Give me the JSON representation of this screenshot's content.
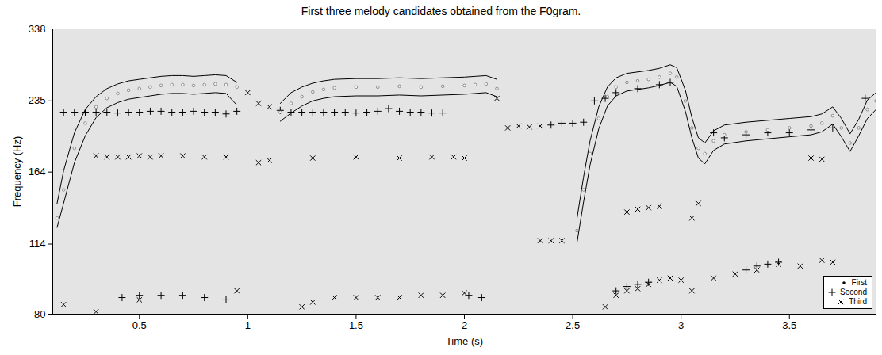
{
  "chart_data": {
    "type": "scatter",
    "title": "First three melody candidates obtained from the F0gram.",
    "x_label": "Time (s)",
    "y_label": "Frequency (Hz)",
    "xlim": [
      0.1,
      3.9
    ],
    "xticks": [
      0.5,
      1,
      1.5,
      2,
      2.5,
      3,
      3.5
    ],
    "ylim": [
      80,
      338
    ],
    "yticks": [
      80,
      114,
      164,
      235,
      338
    ],
    "log": "y",
    "grid": false,
    "legend": "lower right",
    "series": [
      {
        "name": "First",
        "color": "#f2f2f2",
        "marker": "dot",
        "x": [
          0.12,
          0.15,
          0.2,
          0.25,
          0.3,
          0.35,
          0.4,
          0.45,
          0.5,
          0.55,
          0.6,
          0.65,
          0.7,
          0.75,
          0.8,
          0.85,
          0.9,
          0.95,
          1.05,
          1.15,
          1.2,
          1.25,
          1.3,
          1.35,
          1.4,
          1.5,
          1.6,
          1.7,
          1.8,
          1.9,
          2.0,
          2.05,
          2.1,
          2.15,
          2.3,
          2.52,
          2.55,
          2.58,
          2.62,
          2.66,
          2.7,
          2.75,
          2.8,
          2.85,
          2.9,
          2.95,
          2.98,
          3.02,
          3.05,
          3.08,
          3.11,
          3.15,
          3.2,
          3.3,
          3.4,
          3.5,
          3.6,
          3.65,
          3.7,
          3.74,
          3.78,
          3.82,
          3.86,
          3.9
        ],
        "values": [
          130,
          150,
          185,
          210,
          228,
          238,
          244,
          248,
          250,
          252,
          254,
          255,
          255,
          254,
          255,
          256,
          255,
          252,
          null,
          222,
          232,
          240,
          246,
          249,
          251,
          252,
          252,
          253,
          252,
          253,
          254,
          255,
          256,
          250,
          null,
          122,
          150,
          180,
          215,
          240,
          252,
          258,
          260,
          262,
          265,
          270,
          265,
          235,
          205,
          185,
          180,
          192,
          198,
          201,
          203,
          205,
          207,
          210,
          218,
          205,
          190,
          205,
          225,
          235
        ],
        "upper": [
          140,
          165,
          200,
          225,
          240,
          250,
          256,
          260,
          262,
          264,
          266,
          267,
          267,
          266,
          267,
          268,
          267,
          258,
          null,
          232,
          245,
          252,
          257,
          260,
          262,
          263,
          263,
          264,
          263,
          264,
          265,
          266,
          267,
          262,
          null,
          130,
          160,
          192,
          228,
          252,
          264,
          270,
          272,
          274,
          277,
          282,
          278,
          248,
          216,
          195,
          190,
          202,
          208,
          211,
          213,
          215,
          217,
          220,
          228,
          215,
          199,
          214,
          236,
          245
        ],
        "lower": [
          124,
          140,
          172,
          197,
          216,
          227,
          233,
          237,
          239,
          241,
          243,
          244,
          244,
          243,
          244,
          245,
          244,
          230,
          null,
          212,
          221,
          229,
          235,
          238,
          240,
          241,
          241,
          242,
          241,
          242,
          243,
          244,
          245,
          240,
          null,
          115,
          141,
          170,
          204,
          229,
          241,
          247,
          249,
          251,
          254,
          258,
          253,
          223,
          195,
          176,
          171,
          183,
          189,
          192,
          194,
          196,
          198,
          201,
          209,
          196,
          182,
          197,
          215,
          225
        ]
      },
      {
        "name": "Second",
        "color": "#000000",
        "marker": "plus",
        "x": [
          0.15,
          0.2,
          0.25,
          0.3,
          0.35,
          0.4,
          0.45,
          0.5,
          0.55,
          0.6,
          0.65,
          0.7,
          0.75,
          0.8,
          0.85,
          0.9,
          0.95,
          1.15,
          1.2,
          1.25,
          1.3,
          1.35,
          1.4,
          1.45,
          1.5,
          1.55,
          1.6,
          1.65,
          1.7,
          1.75,
          1.8,
          1.85,
          1.9,
          0.42,
          0.5,
          0.6,
          0.7,
          0.8,
          0.9,
          2.02,
          2.08,
          2.4,
          2.45,
          2.5,
          2.55,
          2.6,
          2.65,
          2.7,
          2.8,
          2.9,
          2.95,
          2.7,
          2.75,
          2.8,
          2.85,
          3.15,
          3.2,
          3.3,
          3.4,
          3.5,
          3.6,
          3.7,
          3.3,
          3.35,
          3.4,
          3.45,
          3.85
        ],
        "values": [
          222,
          222,
          222,
          222,
          222,
          221,
          222,
          222,
          223,
          223,
          222,
          222,
          223,
          222,
          222,
          220,
          223,
          224,
          222,
          222,
          222,
          222,
          222,
          222,
          221,
          222,
          223,
          226,
          223,
          222,
          222,
          221,
          221,
          87,
          88,
          88,
          88,
          87,
          86,
          88,
          87,
          208,
          210,
          210,
          211,
          235,
          238,
          245,
          250,
          255,
          258,
          90,
          92,
          93,
          94,
          200,
          195,
          198,
          200,
          200,
          203,
          205,
          100,
          102,
          103,
          104,
          238
        ]
      },
      {
        "name": "Third",
        "color": "#000000",
        "marker": "times",
        "x": [
          0.3,
          0.35,
          0.4,
          0.45,
          0.5,
          0.55,
          0.6,
          0.7,
          0.8,
          0.9,
          1.05,
          1.1,
          1.3,
          1.5,
          1.7,
          1.85,
          1.95,
          2.0,
          0.15,
          0.3,
          0.5,
          0.95,
          1.25,
          1.3,
          1.4,
          1.5,
          1.6,
          1.7,
          1.8,
          1.9,
          2.0,
          1.0,
          1.05,
          1.1,
          2.15,
          2.2,
          2.25,
          2.3,
          2.35,
          2.65,
          2.7,
          2.75,
          2.8,
          2.85,
          2.9,
          2.95,
          2.75,
          2.8,
          2.85,
          2.9,
          2.35,
          2.4,
          2.45,
          3.0,
          3.05,
          3.15,
          3.25,
          3.35,
          3.45,
          3.55,
          3.65,
          3.7,
          3.6,
          3.65,
          3.05,
          3.08
        ],
        "values": [
          178,
          177,
          177,
          177,
          178,
          177,
          178,
          178,
          177,
          177,
          172,
          174,
          176,
          177,
          176,
          177,
          177,
          176,
          84,
          81,
          86,
          90,
          83,
          85,
          87,
          87,
          87,
          87,
          88,
          88,
          89,
          245,
          232,
          228,
          238,
          205,
          207,
          206,
          207,
          83,
          88,
          90,
          91,
          93,
          95,
          96,
          134,
          136,
          137,
          138,
          116,
          116,
          116,
          95,
          90,
          96,
          98,
          100,
          103,
          102,
          105,
          104,
          176,
          175,
          130,
          140
        ]
      }
    ]
  }
}
